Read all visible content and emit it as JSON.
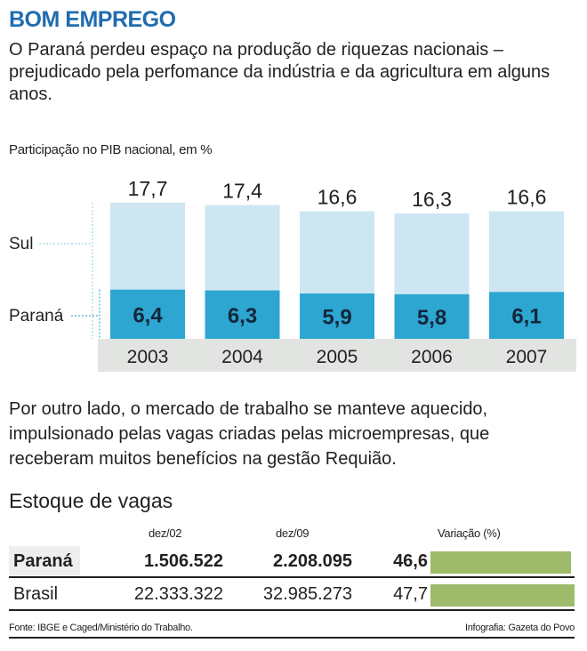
{
  "title": "BOM EMPREGO",
  "intro": "O Paraná perdeu espaço na produção de riquezas nacionais – prejudicado pela perfomance da indústria e da agricultura em alguns anos.",
  "chart_data": {
    "type": "bar",
    "title": "Participação no PIB nacional, em %",
    "categories": [
      "2003",
      "2004",
      "2005",
      "2006",
      "2007"
    ],
    "series": [
      {
        "name": "Sul",
        "values": [
          17.7,
          17.4,
          16.6,
          16.3,
          16.6
        ],
        "color": "#cde6f2"
      },
      {
        "name": "Paraná",
        "values": [
          6.4,
          6.3,
          5.9,
          5.8,
          6.1
        ],
        "color": "#2ea6d2"
      }
    ],
    "value_labels": {
      "Sul": [
        "17,7",
        "17,4",
        "16,6",
        "16,3",
        "16,6"
      ],
      "Paraná": [
        "6,4",
        "6,3",
        "5,9",
        "5,8",
        "6,1"
      ]
    },
    "ylim": [
      0,
      17.7
    ]
  },
  "body2": "Por outro lado, o mercado de trabalho se manteve aquecido, impulsionado pelas vagas criadas pelas microempresas, que receberam muitos benefícios na gestão Requião.",
  "table": {
    "title": "Estoque de vagas",
    "headers": [
      "dez/02",
      "dez/09",
      "Variação (%)"
    ],
    "rows": [
      {
        "name": "Paraná",
        "dez02": "1.506.522",
        "dez09": "2.208.095",
        "var": "46,6",
        "var_value": 46.6
      },
      {
        "name": "Brasil",
        "dez02": "22.333.322",
        "dez09": "32.985.273",
        "var": "47,7",
        "var_value": 47.7
      }
    ],
    "bar_color": "#9dbb6b"
  },
  "footer": {
    "source": "Fonte: IBGE e Caged/Ministério do Trabalho.",
    "credit": "Infografia: Gazeta do Povo"
  }
}
